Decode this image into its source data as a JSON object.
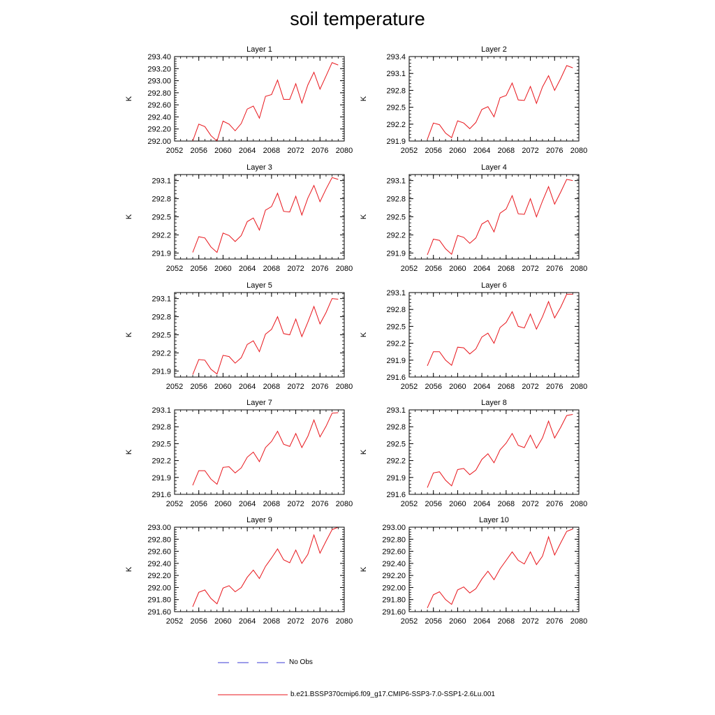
{
  "title": "soil temperature",
  "legend": {
    "obs_label": "No Obs",
    "obs_color": "#3b3bd6",
    "model_label": "b.e21.BSSP370cmip6.f09_g17.CMIP6-SSP3-7.0-SSP1-2.6Lu.001",
    "model_color": "#e8151b"
  },
  "chart_data": [
    {
      "type": "line",
      "title": "Layer 1",
      "ylabel": "K",
      "xlim": [
        2052,
        2080
      ],
      "xticks": [
        "2052",
        "2056",
        "2060",
        "2064",
        "2068",
        "2072",
        "2076",
        "2080"
      ],
      "ylim": [
        292.0,
        293.4
      ],
      "yticks": [
        "292.00",
        "292.20",
        "292.40",
        "292.60",
        "292.80",
        "293.00",
        "293.20",
        "293.40"
      ],
      "yvals": [
        292.0,
        292.2,
        292.4,
        292.6,
        292.8,
        293.0,
        293.2,
        293.4
      ],
      "series": [
        {
          "x": [
            2055,
            2056,
            2057,
            2058,
            2059,
            2060,
            2061,
            2062,
            2063,
            2064,
            2065,
            2066,
            2067,
            2068,
            2069,
            2070,
            2071,
            2072,
            2073,
            2074,
            2075,
            2076,
            2077,
            2078,
            2079
          ],
          "values": [
            292.0,
            292.28,
            292.24,
            292.09,
            292.0,
            292.33,
            292.28,
            292.17,
            292.29,
            292.53,
            292.58,
            292.38,
            292.74,
            292.77,
            293.01,
            292.69,
            292.69,
            292.95,
            292.63,
            292.93,
            293.14,
            292.86,
            293.08,
            293.3,
            293.26
          ]
        }
      ]
    },
    {
      "type": "line",
      "title": "Layer 2",
      "ylabel": "K",
      "xlim": [
        2052,
        2080
      ],
      "xticks": [
        "2052",
        "2056",
        "2060",
        "2064",
        "2068",
        "2072",
        "2076",
        "2080"
      ],
      "ylim": [
        291.9,
        293.4
      ],
      "yticks": [
        "291.9",
        "292.2",
        "292.5",
        "292.8",
        "293.1",
        "293.4"
      ],
      "yvals": [
        291.9,
        292.2,
        292.5,
        292.8,
        293.1,
        293.4
      ],
      "series": [
        {
          "x": [
            2055,
            2056,
            2057,
            2058,
            2059,
            2060,
            2061,
            2062,
            2063,
            2064,
            2065,
            2066,
            2067,
            2068,
            2069,
            2070,
            2071,
            2072,
            2073,
            2074,
            2075,
            2076,
            2077,
            2078,
            2079
          ],
          "values": [
            291.93,
            292.22,
            292.19,
            292.04,
            291.96,
            292.26,
            292.22,
            292.12,
            292.23,
            292.46,
            292.51,
            292.33,
            292.67,
            292.71,
            292.93,
            292.63,
            292.62,
            292.87,
            292.57,
            292.86,
            293.06,
            292.8,
            293.01,
            293.24,
            293.2
          ]
        }
      ]
    },
    {
      "type": "line",
      "title": "Layer 3",
      "ylabel": "K",
      "xlim": [
        2052,
        2080
      ],
      "xticks": [
        "2052",
        "2056",
        "2060",
        "2064",
        "2068",
        "2072",
        "2076",
        "2080"
      ],
      "ylim": [
        291.8,
        293.2
      ],
      "yticks": [
        "291.9",
        "292.2",
        "292.5",
        "292.8",
        "293.1"
      ],
      "yvals": [
        291.9,
        292.2,
        292.5,
        292.8,
        293.1
      ],
      "series": [
        {
          "x": [
            2055,
            2056,
            2057,
            2058,
            2059,
            2060,
            2061,
            2062,
            2063,
            2064,
            2065,
            2066,
            2067,
            2068,
            2069,
            2070,
            2071,
            2072,
            2073,
            2074,
            2075,
            2076,
            2077,
            2078,
            2079
          ],
          "values": [
            291.91,
            292.17,
            292.15,
            292.0,
            291.91,
            292.23,
            292.19,
            292.09,
            292.19,
            292.42,
            292.48,
            292.28,
            292.61,
            292.67,
            292.89,
            292.59,
            292.58,
            292.84,
            292.53,
            292.81,
            293.02,
            292.75,
            292.96,
            293.15,
            293.12
          ]
        }
      ]
    },
    {
      "type": "line",
      "title": "Layer 4",
      "ylabel": "K",
      "xlim": [
        2052,
        2080
      ],
      "xticks": [
        "2052",
        "2056",
        "2060",
        "2064",
        "2068",
        "2072",
        "2076",
        "2080"
      ],
      "ylim": [
        291.8,
        293.2
      ],
      "yticks": [
        "291.9",
        "292.2",
        "292.5",
        "292.8",
        "293.1"
      ],
      "yvals": [
        291.9,
        292.2,
        292.5,
        292.8,
        293.1
      ],
      "series": [
        {
          "x": [
            2055,
            2056,
            2057,
            2058,
            2059,
            2060,
            2061,
            2062,
            2063,
            2064,
            2065,
            2066,
            2067,
            2068,
            2069,
            2070,
            2071,
            2072,
            2073,
            2074,
            2075,
            2076,
            2077,
            2078,
            2079
          ],
          "values": [
            291.87,
            292.13,
            292.11,
            291.97,
            291.88,
            292.19,
            292.16,
            292.06,
            292.15,
            292.38,
            292.44,
            292.25,
            292.56,
            292.63,
            292.85,
            292.55,
            292.54,
            292.8,
            292.5,
            292.76,
            293.0,
            292.71,
            292.91,
            293.12,
            293.1
          ]
        }
      ]
    },
    {
      "type": "line",
      "title": "Layer 5",
      "ylabel": "K",
      "xlim": [
        2052,
        2080
      ],
      "xticks": [
        "2052",
        "2056",
        "2060",
        "2064",
        "2068",
        "2072",
        "2076",
        "2080"
      ],
      "ylim": [
        291.8,
        293.2
      ],
      "yticks": [
        "291.9",
        "292.2",
        "292.5",
        "292.8",
        "293.1"
      ],
      "yvals": [
        291.9,
        292.2,
        292.5,
        292.8,
        293.1
      ],
      "series": [
        {
          "x": [
            2055,
            2056,
            2057,
            2058,
            2059,
            2060,
            2061,
            2062,
            2063,
            2064,
            2065,
            2066,
            2067,
            2068,
            2069,
            2070,
            2071,
            2072,
            2073,
            2074,
            2075,
            2076,
            2077,
            2078,
            2079
          ],
          "values": [
            291.84,
            292.09,
            292.08,
            291.93,
            291.85,
            292.16,
            292.14,
            292.03,
            292.12,
            292.34,
            292.4,
            292.22,
            292.51,
            292.59,
            292.8,
            292.52,
            292.5,
            292.76,
            292.47,
            292.71,
            292.97,
            292.68,
            292.87,
            293.1,
            293.09
          ]
        }
      ]
    },
    {
      "type": "line",
      "title": "Layer 6",
      "ylabel": "K",
      "xlim": [
        2052,
        2080
      ],
      "xticks": [
        "2052",
        "2056",
        "2060",
        "2064",
        "2068",
        "2072",
        "2076",
        "2080"
      ],
      "ylim": [
        291.6,
        293.1
      ],
      "yticks": [
        "291.6",
        "291.9",
        "292.2",
        "292.5",
        "292.8",
        "293.1"
      ],
      "yvals": [
        291.6,
        291.9,
        292.2,
        292.5,
        292.8,
        293.1
      ],
      "series": [
        {
          "x": [
            2055,
            2056,
            2057,
            2058,
            2059,
            2060,
            2061,
            2062,
            2063,
            2064,
            2065,
            2066,
            2067,
            2068,
            2069,
            2070,
            2071,
            2072,
            2073,
            2074,
            2075,
            2076,
            2077,
            2078,
            2079
          ],
          "values": [
            291.8,
            292.05,
            292.05,
            291.9,
            291.81,
            292.13,
            292.12,
            292.01,
            292.1,
            292.31,
            292.38,
            292.2,
            292.48,
            292.57,
            292.76,
            292.5,
            292.47,
            292.72,
            292.45,
            292.67,
            292.94,
            292.65,
            292.84,
            293.07,
            293.07
          ]
        }
      ]
    },
    {
      "type": "line",
      "title": "Layer 7",
      "ylabel": "K",
      "xlim": [
        2052,
        2080
      ],
      "xticks": [
        "2052",
        "2056",
        "2060",
        "2064",
        "2068",
        "2072",
        "2076",
        "2080"
      ],
      "ylim": [
        291.6,
        293.1
      ],
      "yticks": [
        "291.6",
        "291.9",
        "292.2",
        "292.5",
        "292.8",
        "293.1"
      ],
      "yvals": [
        291.6,
        291.9,
        292.2,
        292.5,
        292.8,
        293.1
      ],
      "series": [
        {
          "x": [
            2055,
            2056,
            2057,
            2058,
            2059,
            2060,
            2061,
            2062,
            2063,
            2064,
            2065,
            2066,
            2067,
            2068,
            2069,
            2070,
            2071,
            2072,
            2073,
            2074,
            2075,
            2076,
            2077,
            2078,
            2079
          ],
          "values": [
            291.76,
            292.02,
            292.02,
            291.87,
            291.78,
            292.08,
            292.09,
            291.98,
            292.07,
            292.26,
            292.35,
            292.18,
            292.43,
            292.54,
            292.72,
            292.49,
            292.45,
            292.68,
            292.43,
            292.63,
            292.92,
            292.62,
            292.81,
            293.04,
            293.05
          ]
        }
      ]
    },
    {
      "type": "line",
      "title": "Layer 8",
      "ylabel": "K",
      "xlim": [
        2052,
        2080
      ],
      "xticks": [
        "2052",
        "2056",
        "2060",
        "2064",
        "2068",
        "2072",
        "2076",
        "2080"
      ],
      "ylim": [
        291.6,
        293.1
      ],
      "yticks": [
        "291.6",
        "291.9",
        "292.2",
        "292.5",
        "292.8",
        "293.1"
      ],
      "yvals": [
        291.6,
        291.9,
        292.2,
        292.5,
        292.8,
        293.1
      ],
      "series": [
        {
          "x": [
            2055,
            2056,
            2057,
            2058,
            2059,
            2060,
            2061,
            2062,
            2063,
            2064,
            2065,
            2066,
            2067,
            2068,
            2069,
            2070,
            2071,
            2072,
            2073,
            2074,
            2075,
            2076,
            2077,
            2078,
            2079
          ],
          "values": [
            291.72,
            291.98,
            292.0,
            291.85,
            291.75,
            292.04,
            292.06,
            291.95,
            292.03,
            292.22,
            292.32,
            292.16,
            292.39,
            292.51,
            292.68,
            292.47,
            292.43,
            292.65,
            292.42,
            292.6,
            292.9,
            292.6,
            292.79,
            293.0,
            293.02
          ]
        }
      ]
    },
    {
      "type": "line",
      "title": "Layer 9",
      "ylabel": "K",
      "xlim": [
        2052,
        2080
      ],
      "xticks": [
        "2052",
        "2056",
        "2060",
        "2064",
        "2068",
        "2072",
        "2076",
        "2080"
      ],
      "ylim": [
        291.6,
        293.0
      ],
      "yticks": [
        "291.60",
        "291.80",
        "292.00",
        "292.20",
        "292.40",
        "292.60",
        "292.80",
        "293.00"
      ],
      "yvals": [
        291.6,
        291.8,
        292.0,
        292.2,
        292.4,
        292.6,
        292.8,
        293.0
      ],
      "series": [
        {
          "x": [
            2055,
            2056,
            2057,
            2058,
            2059,
            2060,
            2061,
            2062,
            2063,
            2064,
            2065,
            2066,
            2067,
            2068,
            2069,
            2070,
            2071,
            2072,
            2073,
            2074,
            2075,
            2076,
            2077,
            2078,
            2079
          ],
          "values": [
            291.68,
            291.92,
            291.96,
            291.82,
            291.73,
            291.99,
            292.03,
            291.93,
            292.0,
            292.17,
            292.29,
            292.15,
            292.35,
            292.49,
            292.64,
            292.46,
            292.41,
            292.62,
            292.4,
            292.55,
            292.87,
            292.57,
            292.77,
            292.96,
            293.0
          ]
        }
      ]
    },
    {
      "type": "line",
      "title": "Layer 10",
      "ylabel": "K",
      "xlim": [
        2052,
        2080
      ],
      "xticks": [
        "2052",
        "2056",
        "2060",
        "2064",
        "2068",
        "2072",
        "2076",
        "2080"
      ],
      "ylim": [
        291.6,
        293.0
      ],
      "yticks": [
        "291.60",
        "291.80",
        "292.00",
        "292.20",
        "292.40",
        "292.60",
        "292.80",
        "293.00"
      ],
      "yvals": [
        291.6,
        291.8,
        292.0,
        292.2,
        292.4,
        292.6,
        292.8,
        293.0
      ],
      "series": [
        {
          "x": [
            2055,
            2056,
            2057,
            2058,
            2059,
            2060,
            2061,
            2062,
            2063,
            2064,
            2065,
            2066,
            2067,
            2068,
            2069,
            2070,
            2071,
            2072,
            2073,
            2074,
            2075,
            2076,
            2077,
            2078,
            2079
          ],
          "values": [
            291.66,
            291.88,
            291.93,
            291.8,
            291.72,
            291.96,
            292.01,
            291.91,
            291.98,
            292.14,
            292.27,
            292.13,
            292.31,
            292.45,
            292.59,
            292.45,
            292.39,
            292.59,
            292.38,
            292.52,
            292.84,
            292.54,
            292.74,
            292.93,
            292.97
          ]
        }
      ]
    }
  ]
}
